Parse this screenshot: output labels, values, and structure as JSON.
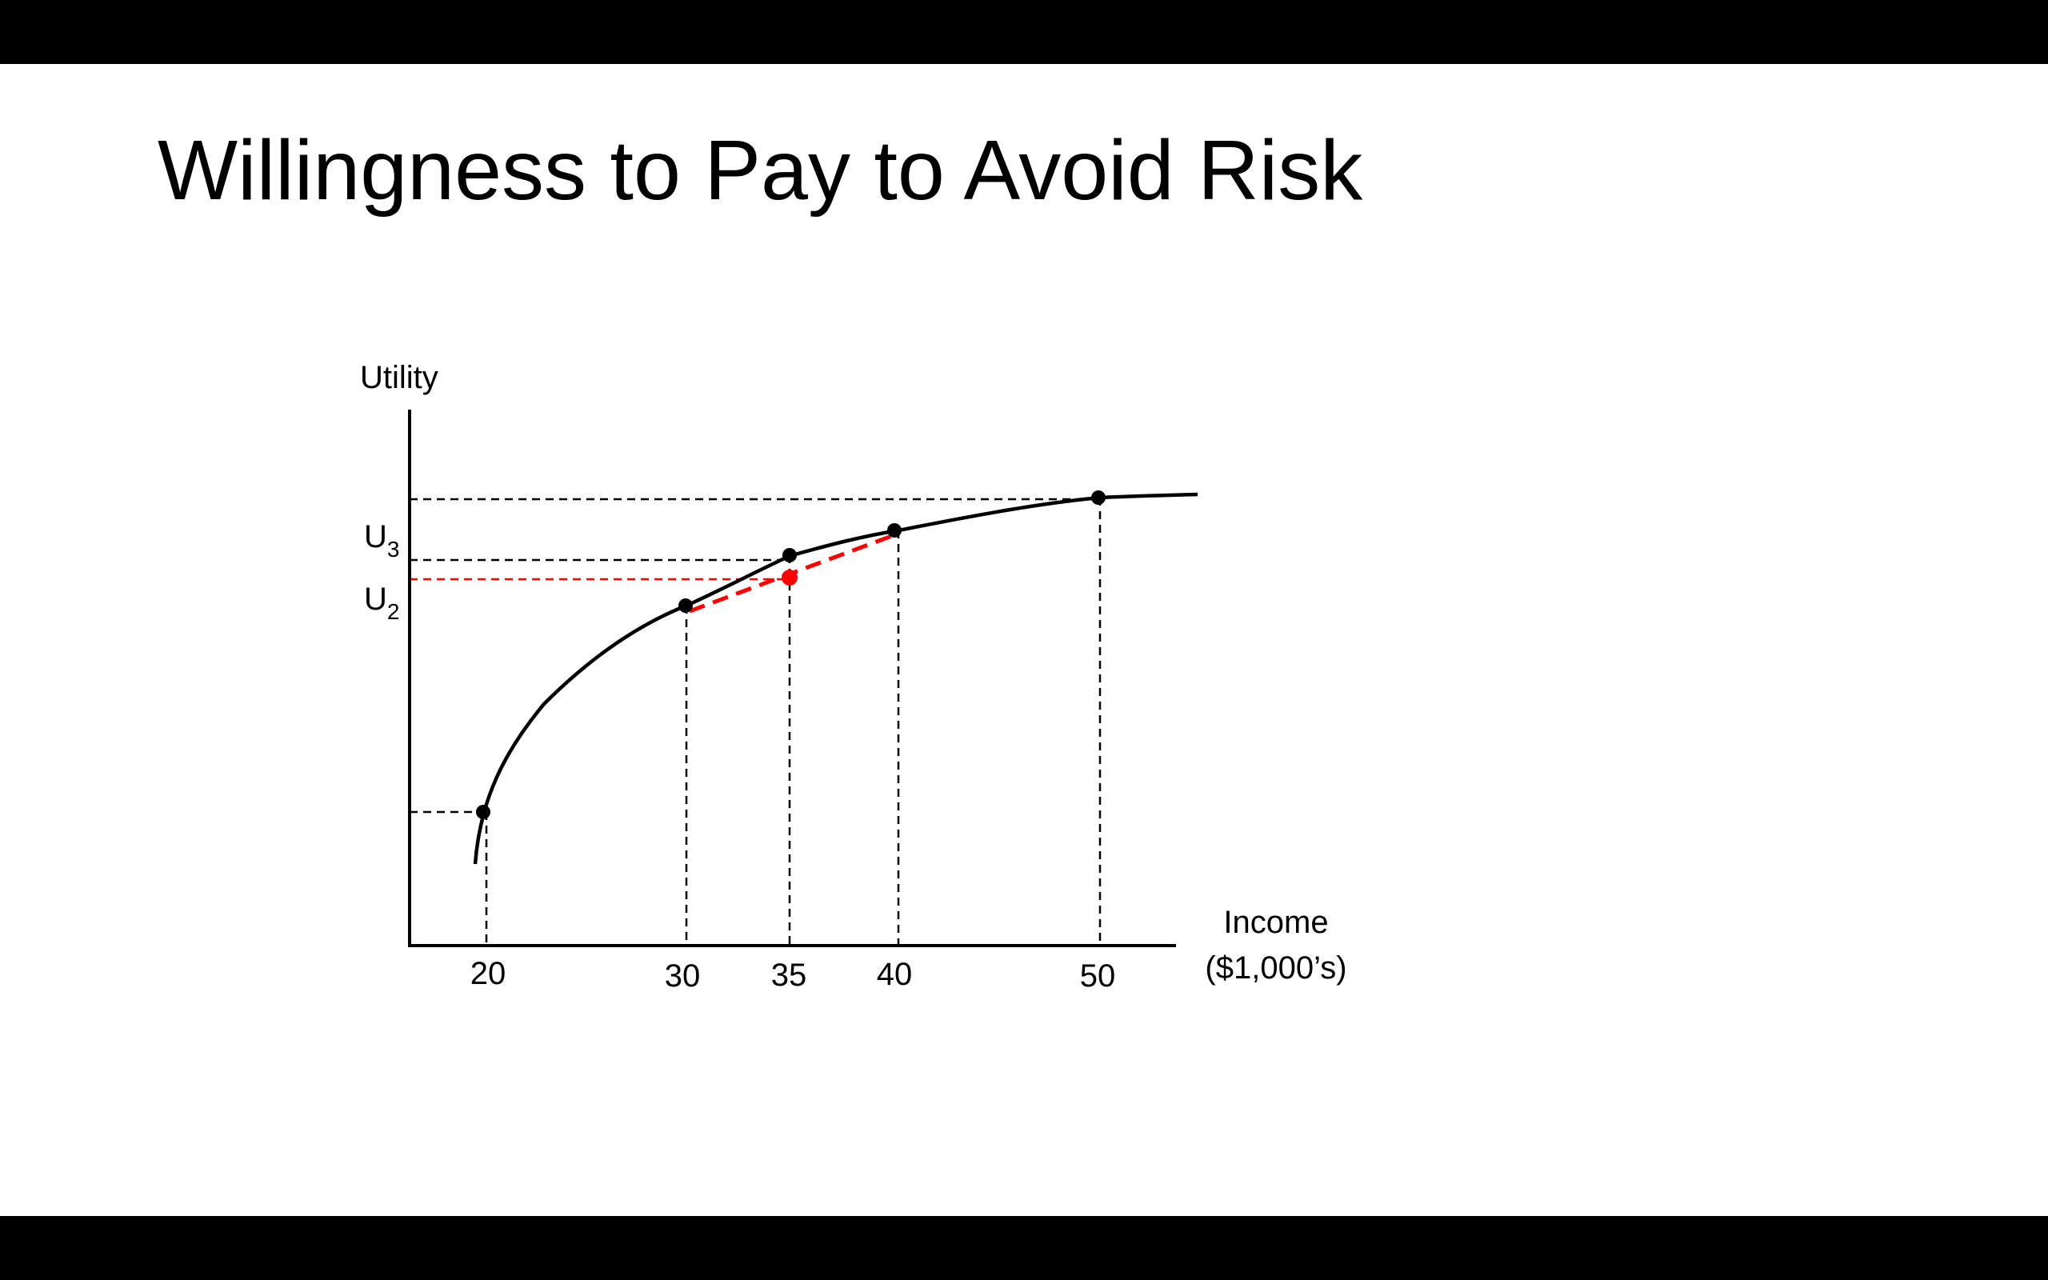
{
  "slide": {
    "title": "Willingness to Pay to Avoid Risk"
  },
  "figure": {
    "y_axis_label": "Utility",
    "x_axis_label_line1": "Income",
    "x_axis_label_line2": "($1,000’s)",
    "x_ticks": [
      "20",
      "30",
      "35",
      "40",
      "50"
    ],
    "u3_label": "U",
    "u3_sub": "3",
    "u2_label": "U",
    "u2_sub": "2",
    "colors": {
      "curve": "#000000",
      "guides": "#000000",
      "chord": "#ff0000",
      "expected_point": "#ff0000"
    },
    "curve_points": [
      {
        "income": 20,
        "role": "outcome-low"
      },
      {
        "income": 30,
        "role": "chord-start"
      },
      {
        "income": 35,
        "role": "certainty-equivalent"
      },
      {
        "income": 40,
        "role": "chord-end"
      },
      {
        "income": 50,
        "role": "outcome-high"
      }
    ],
    "expected_utility_point": {
      "income": 35
    }
  }
}
